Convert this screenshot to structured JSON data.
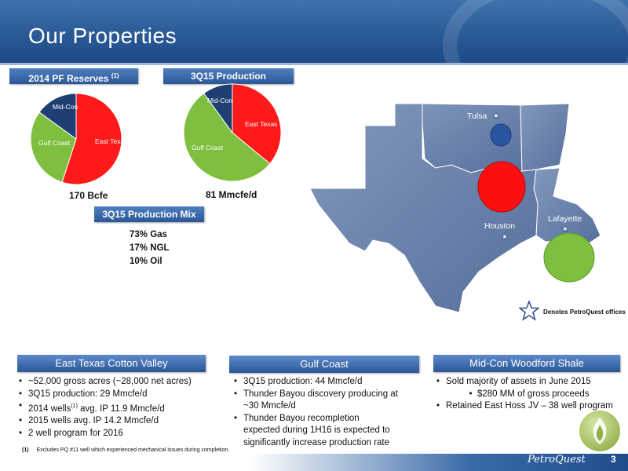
{
  "header": {
    "title": "Our Properties"
  },
  "reserves": {
    "label": "2014 PF  Reserves ",
    "label_sup": "(1)",
    "caption": "170 Bcfe",
    "slices": [
      {
        "name": "East Texas",
        "value": 55,
        "color": "#ff1a1a"
      },
      {
        "name": "Gulf Coast",
        "value": 30,
        "color": "#7fbf3f"
      },
      {
        "name": "Mid-Con",
        "value": 15,
        "color": "#1f3f73"
      }
    ]
  },
  "production": {
    "label": "3Q15 Production",
    "caption": "81 Mmcfe/d",
    "slices": [
      {
        "name": "East Texas",
        "value": 36,
        "color": "#ff1a1a"
      },
      {
        "name": "Gulf Coast",
        "value": 54,
        "color": "#7fbf3f"
      },
      {
        "name": "Mid-Con",
        "value": 10,
        "color": "#1f3f73"
      }
    ]
  },
  "mix": {
    "label": "3Q15 Production Mix",
    "lines": [
      "73% Gas",
      "17% NGL",
      "10% Oil"
    ]
  },
  "map": {
    "cities": [
      "Tulsa",
      "Houston",
      "Lafayette"
    ],
    "legend": "Denotes PetroQuest offices",
    "colors": {
      "state_fill": "#6d86ad",
      "mid_con": "#2b55a0",
      "east_texas": "#ff1010",
      "gulf_coast": "#7fbf3f"
    }
  },
  "east_texas": {
    "heading": "East Texas Cotton Valley",
    "bullets": [
      "~52,000 gross acres (~28,000 net acres)",
      "3Q15 production:  29 Mmcfe/d",
      "2014 wells",
      "2015 wells avg. IP 14.2 Mmcfe/d",
      "2 well program for 2016"
    ],
    "wells_sup": "(1)",
    "wells_tail": " avg. IP 11.9  Mmcfe/d"
  },
  "gulf_coast": {
    "heading": "Gulf Coast",
    "bullets": [
      "3Q15 production:  44 Mmcfe/d",
      "Thunder Bayou discovery producing at",
      "~30 Mmcfe/d",
      "Thunder Bayou recompletion",
      "expected during 1H16 is expected to",
      "significantly increase production rate"
    ]
  },
  "mid_con": {
    "heading": "Mid-Con Woodford Shale",
    "bullets": [
      "Sold majority of assets in June 2015",
      "$280 MM of gross proceeds",
      "Retained East Hoss JV – 38 well program"
    ]
  },
  "footnote": {
    "marker": "(1)",
    "text": "Excludes PQ #11 well which experienced mechanical issues during completion."
  },
  "footer": {
    "brand": "PetroQuest",
    "page": "3"
  }
}
